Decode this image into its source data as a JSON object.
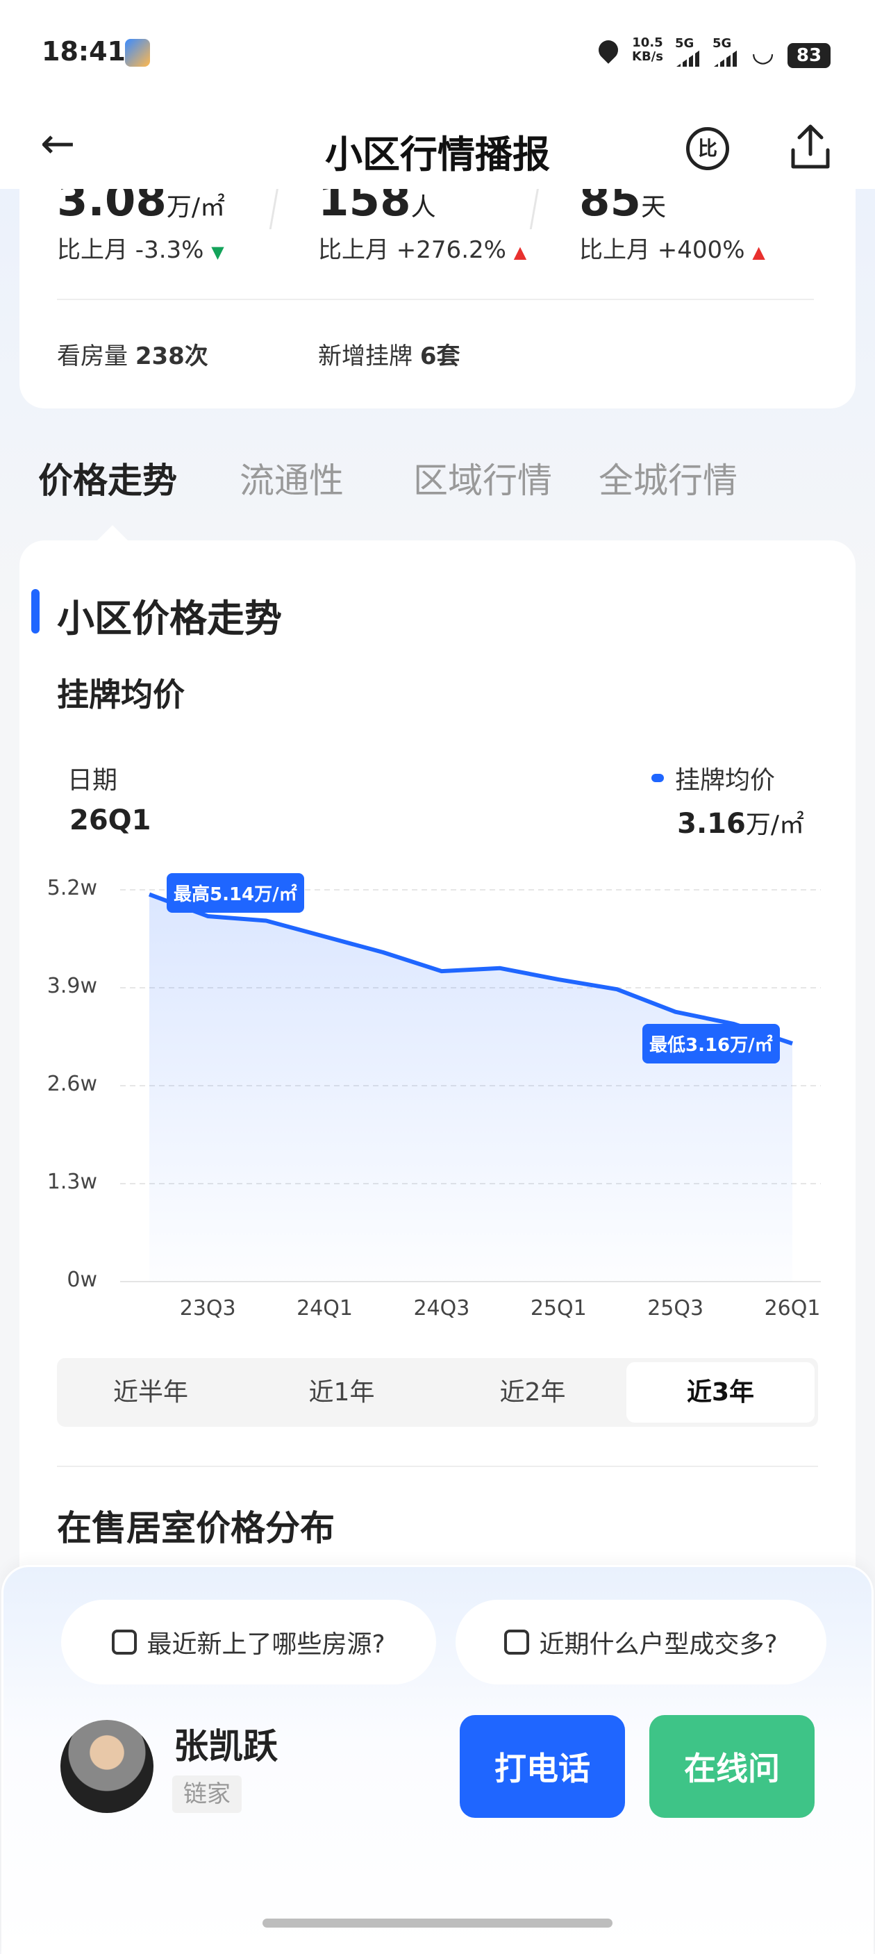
{
  "status": {
    "time": "18:41",
    "net_speed": "10.5",
    "net_unit": "KB/s",
    "sig1": "5G",
    "sig2": "5G",
    "battery": "83"
  },
  "header": {
    "title": "小区行情播报",
    "compare_glyph": "比"
  },
  "stats": [
    {
      "value": "3.08",
      "unit": "万/㎡",
      "change": "比上月 -3.3%",
      "dir": "down"
    },
    {
      "value": "158",
      "unit": "人",
      "change": "比上月 +276.2%",
      "dir": "up"
    },
    {
      "value": "85",
      "unit": "天",
      "change": "比上月 +400%",
      "dir": "up"
    }
  ],
  "extra": {
    "views_label": "看房量",
    "views": "238次",
    "new_label": "新增挂牌",
    "new": "6套"
  },
  "tabs": [
    {
      "label": "价格走势",
      "active": true
    },
    {
      "label": "流通性"
    },
    {
      "label": "区域行情"
    },
    {
      "label": "全城行情"
    }
  ],
  "section": {
    "title": "小区价格走势",
    "subtitle": "挂牌均价"
  },
  "readout": {
    "date_label": "日期",
    "date": "26Q1",
    "series_label": "挂牌均价",
    "value": "3.16",
    "unit": "万/㎡"
  },
  "colors": {
    "accent": "#1f66ff",
    "green": "#3ec487",
    "down": "#13a35a",
    "up": "#e8302e"
  },
  "chart_data": {
    "type": "area",
    "x": [
      "23Q2",
      "23Q3",
      "23Q4",
      "24Q1",
      "24Q2",
      "24Q3",
      "24Q4",
      "25Q1",
      "25Q2",
      "25Q3",
      "25Q4",
      "26Q1"
    ],
    "series": [
      {
        "name": "挂牌均价",
        "values": [
          5.14,
          4.85,
          4.79,
          4.58,
          4.37,
          4.12,
          4.16,
          4.01,
          3.88,
          3.58,
          3.42,
          3.16
        ]
      }
    ],
    "x_tick_labels": [
      "23Q3",
      "24Q1",
      "24Q3",
      "25Q1",
      "25Q3",
      "26Q1"
    ],
    "y_tick_labels": [
      "5.2w",
      "3.9w",
      "2.6w",
      "1.3w",
      "0w"
    ],
    "ylim": [
      0,
      5.2
    ],
    "grid": true,
    "annotations": {
      "max": "最高5.14万/㎡",
      "min": "最低3.16万/㎡"
    }
  },
  "ranges": [
    {
      "label": "近半年"
    },
    {
      "label": "近1年"
    },
    {
      "label": "近2年"
    },
    {
      "label": "近3年",
      "active": true
    }
  ],
  "dist_title": "在售居室价格分布",
  "chips": [
    "最近新上了哪些房源?",
    "近期什么户型成交多?"
  ],
  "agent": {
    "name": "张凯跃",
    "company": "链家",
    "call": "打电话",
    "chat": "在线问"
  }
}
